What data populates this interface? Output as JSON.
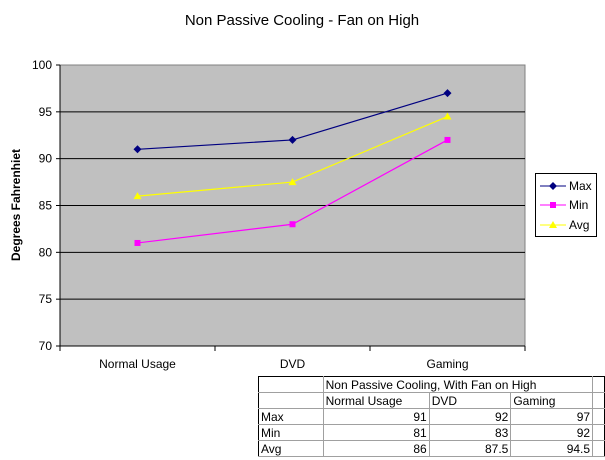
{
  "chart_data": {
    "type": "line",
    "title": "Non Passive Cooling - Fan on High",
    "xlabel": "",
    "ylabel": "Degrees Fahrenhiet",
    "categories": [
      "Normal Usage",
      "DVD",
      "Gaming"
    ],
    "ylim": [
      70,
      100
    ],
    "yticks": [
      "70",
      "75",
      "80",
      "85",
      "90",
      "95",
      "100"
    ],
    "grid": true,
    "plot_background": "#c0c0c0",
    "legend_position": "right",
    "series": [
      {
        "name": "Max",
        "values": [
          91,
          92,
          97
        ],
        "color": "#000080",
        "marker": "diamond"
      },
      {
        "name": "Min",
        "values": [
          81,
          83,
          92
        ],
        "color": "#ff00ff",
        "marker": "square"
      },
      {
        "name": "Avg",
        "values": [
          86,
          87.5,
          94.5
        ],
        "color": "#ffff00",
        "marker": "triangle"
      }
    ]
  },
  "table": {
    "title": "Non Passive Cooling, With Fan on High",
    "headers": [
      "Normal Usage",
      "DVD",
      "Gaming"
    ],
    "rows": [
      {
        "label": "Max",
        "values": [
          "91",
          "92",
          "97"
        ]
      },
      {
        "label": "Min",
        "values": [
          "81",
          "83",
          "92"
        ]
      },
      {
        "label": "Avg",
        "values": [
          "86",
          "87.5",
          "94.5"
        ]
      }
    ]
  }
}
